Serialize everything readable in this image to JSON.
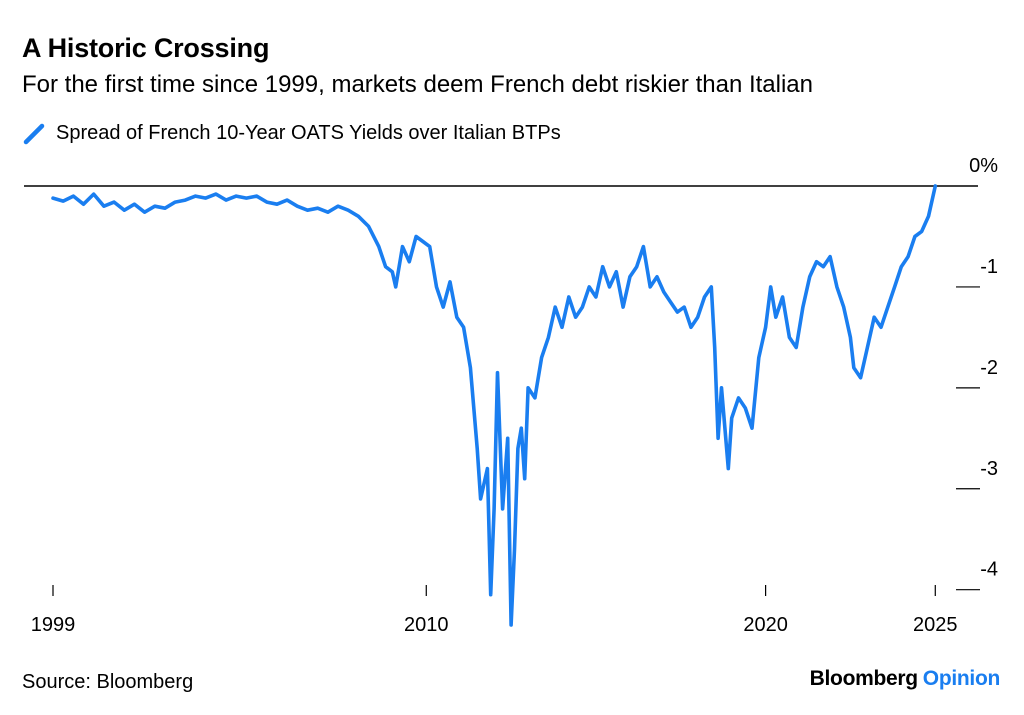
{
  "header": {
    "title": "A Historic Crossing",
    "subtitle": "For the first time since 1999, markets deem French debt riskier than Italian"
  },
  "footer": {
    "source": "Source: Bloomberg",
    "brand_primary": "Bloomberg",
    "brand_secondary": "Opinion"
  },
  "colors": {
    "series": "#1a7ef0",
    "brand_accent": "#1a7ef0",
    "axis": "#000000"
  },
  "chart_data": {
    "type": "line",
    "title": "A Historic Crossing",
    "subtitle": "For the first time since 1999, markets deem French debt riskier than Italian",
    "xlabel": "",
    "ylabel": "",
    "xlim": [
      1999.0,
      2026.2
    ],
    "ylim": [
      -4.35,
      0.0
    ],
    "x_ticks": [
      {
        "value": 1999,
        "label": "1999"
      },
      {
        "value": 2010,
        "label": "2010"
      },
      {
        "value": 2020,
        "label": "2020"
      },
      {
        "value": 2025,
        "label": "2025"
      }
    ],
    "y_ticks": [
      {
        "value": 0,
        "label": "0%"
      },
      {
        "value": -1,
        "label": "-1"
      },
      {
        "value": -2,
        "label": "-2"
      },
      {
        "value": -3,
        "label": "-3"
      },
      {
        "value": -4,
        "label": "-4"
      }
    ],
    "grid": false,
    "legend": "top-left",
    "series": [
      {
        "name": "Spread of French 10-Year OATS Yields over Italian BTPs",
        "x": [
          1999.0,
          1999.3,
          1999.6,
          1999.9,
          2000.2,
          2000.5,
          2000.8,
          2001.1,
          2001.4,
          2001.7,
          2002.0,
          2002.3,
          2002.6,
          2002.9,
          2003.2,
          2003.5,
          2003.8,
          2004.1,
          2004.4,
          2004.7,
          2005.0,
          2005.3,
          2005.6,
          2005.9,
          2006.2,
          2006.5,
          2006.8,
          2007.1,
          2007.4,
          2007.7,
          2008.0,
          2008.3,
          2008.6,
          2008.8,
          2009.0,
          2009.1,
          2009.3,
          2009.5,
          2009.7,
          2009.9,
          2010.1,
          2010.3,
          2010.5,
          2010.7,
          2010.9,
          2011.1,
          2011.3,
          2011.5,
          2011.6,
          2011.8,
          2011.9,
          2012.0,
          2012.1,
          2012.25,
          2012.4,
          2012.5,
          2012.6,
          2012.7,
          2012.8,
          2012.9,
          2013.0,
          2013.2,
          2013.4,
          2013.6,
          2013.8,
          2014.0,
          2014.2,
          2014.4,
          2014.6,
          2014.8,
          2015.0,
          2015.2,
          2015.4,
          2015.6,
          2015.8,
          2016.0,
          2016.2,
          2016.4,
          2016.6,
          2016.8,
          2017.0,
          2017.2,
          2017.4,
          2017.6,
          2017.8,
          2018.0,
          2018.2,
          2018.4,
          2018.5,
          2018.6,
          2018.7,
          2018.8,
          2018.9,
          2019.0,
          2019.2,
          2019.4,
          2019.6,
          2019.8,
          2020.0,
          2020.15,
          2020.3,
          2020.5,
          2020.7,
          2020.9,
          2021.1,
          2021.3,
          2021.5,
          2021.7,
          2021.9,
          2022.1,
          2022.3,
          2022.5,
          2022.6,
          2022.8,
          2023.0,
          2023.2,
          2023.4,
          2023.6,
          2023.8,
          2024.0,
          2024.2,
          2024.4,
          2024.6,
          2024.8,
          2025.0
        ],
        "values": [
          -0.12,
          -0.15,
          -0.1,
          -0.18,
          -0.08,
          -0.2,
          -0.16,
          -0.24,
          -0.18,
          -0.26,
          -0.2,
          -0.22,
          -0.16,
          -0.14,
          -0.1,
          -0.12,
          -0.08,
          -0.14,
          -0.1,
          -0.12,
          -0.1,
          -0.16,
          -0.18,
          -0.14,
          -0.2,
          -0.24,
          -0.22,
          -0.26,
          -0.2,
          -0.24,
          -0.3,
          -0.4,
          -0.6,
          -0.8,
          -0.85,
          -1.0,
          -0.6,
          -0.75,
          -0.5,
          -0.55,
          -0.6,
          -1.0,
          -1.2,
          -0.95,
          -1.3,
          -1.4,
          -1.8,
          -2.6,
          -3.1,
          -2.8,
          -4.05,
          -3.2,
          -1.85,
          -3.2,
          -2.5,
          -4.35,
          -3.6,
          -2.6,
          -2.4,
          -2.9,
          -2.0,
          -2.1,
          -1.7,
          -1.5,
          -1.2,
          -1.4,
          -1.1,
          -1.3,
          -1.2,
          -1.0,
          -1.1,
          -0.8,
          -1.0,
          -0.85,
          -1.2,
          -0.9,
          -0.8,
          -0.6,
          -1.0,
          -0.9,
          -1.05,
          -1.15,
          -1.25,
          -1.2,
          -1.4,
          -1.3,
          -1.1,
          -1.0,
          -1.6,
          -2.5,
          -2.0,
          -2.4,
          -2.8,
          -2.3,
          -2.1,
          -2.2,
          -2.4,
          -1.7,
          -1.4,
          -1.0,
          -1.3,
          -1.1,
          -1.5,
          -1.6,
          -1.2,
          -0.9,
          -0.75,
          -0.8,
          -0.7,
          -1.0,
          -1.2,
          -1.5,
          -1.8,
          -1.9,
          -1.6,
          -1.3,
          -1.4,
          -1.2,
          -1.0,
          -0.8,
          -0.7,
          -0.5,
          -0.45,
          -0.3,
          0.0
        ]
      }
    ]
  }
}
